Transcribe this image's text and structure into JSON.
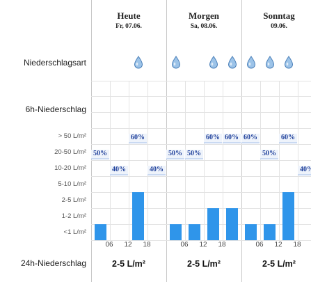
{
  "days": [
    {
      "title": "Heute",
      "date": "Fr, 07.06.",
      "daily_total": "2-5 L/m²"
    },
    {
      "title": "Morgen",
      "date": "Sa, 08.06.",
      "daily_total": "2-5 L/m²"
    },
    {
      "title": "Sonntag",
      "date": "09.06.",
      "daily_total": "2-5 L/m²"
    }
  ],
  "row_labels": {
    "type": "Niederschlagsart",
    "six_hour": "6h-Niederschlag",
    "daily": "24h-Niederschlag"
  },
  "levels": [
    "> 50 L/m²",
    "20-50 L/m²",
    "10-20 L/m²",
    "5-10 L/m²",
    "2-5 L/m²",
    "1-2 L/m²",
    "<1 L/m²"
  ],
  "time_ticks": [
    "06",
    "12",
    "18",
    "06",
    "12",
    "18",
    "06",
    "12",
    "18"
  ],
  "precip_icon": "raindrop-icon",
  "colors": {
    "bar": "#2f95ea",
    "drop": "#9cc3e8",
    "percent_text": "#1e3f9a"
  },
  "periods": [
    {
      "drop": false,
      "bar_level": 1,
      "prob": "50%",
      "prob_level": 2
    },
    {
      "drop": false,
      "bar_level": 0,
      "prob": "40%",
      "prob_level": 3
    },
    {
      "drop": true,
      "bar_level": 3,
      "prob": "60%",
      "prob_level": 1
    },
    {
      "drop": false,
      "bar_level": 0,
      "prob": "40%",
      "prob_level": 3
    },
    {
      "drop": true,
      "bar_level": 1,
      "prob": "50%",
      "prob_level": 2
    },
    {
      "drop": false,
      "bar_level": 1,
      "prob": "50%",
      "prob_level": 2
    },
    {
      "drop": true,
      "bar_level": 2,
      "prob": "60%",
      "prob_level": 1
    },
    {
      "drop": true,
      "bar_level": 2,
      "prob": "60%",
      "prob_level": 1
    },
    {
      "drop": true,
      "bar_level": 1,
      "prob": "60%",
      "prob_level": 1
    },
    {
      "drop": true,
      "bar_level": 1,
      "prob": "50%",
      "prob_level": 2
    },
    {
      "drop": true,
      "bar_level": 3,
      "prob": "60%",
      "prob_level": 1
    },
    {
      "drop": false,
      "bar_level": 0,
      "prob": "40%",
      "prob_level": 3
    }
  ]
}
